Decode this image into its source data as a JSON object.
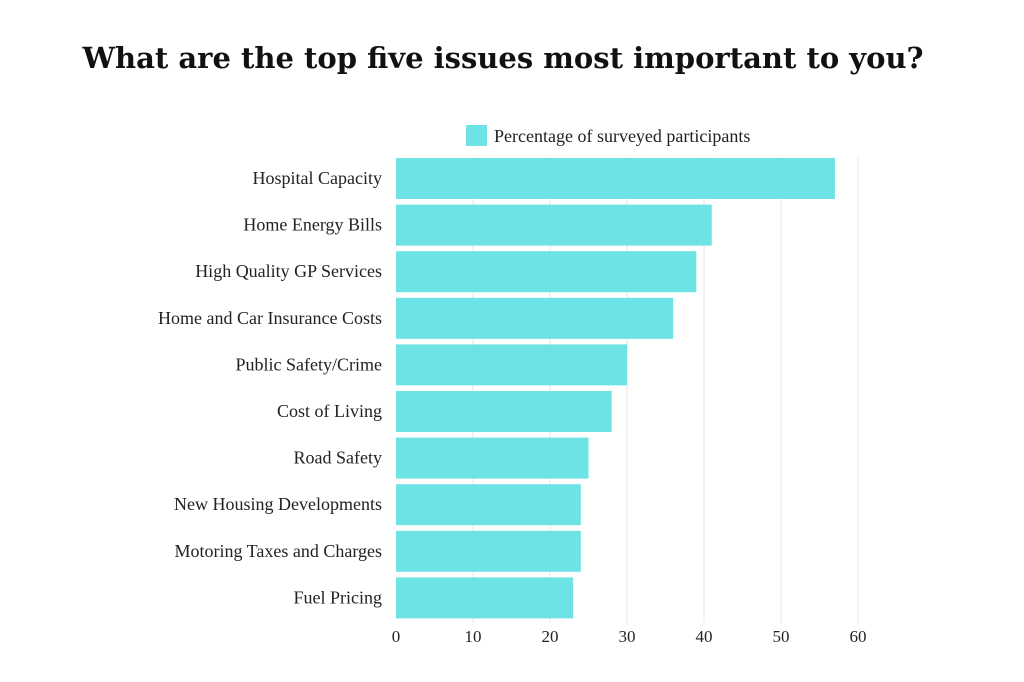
{
  "chart_data": {
    "type": "bar",
    "orientation": "horizontal",
    "title": "What are the top five issues most important to you?",
    "legend_position": "top",
    "categories": [
      "Hospital Capacity",
      "Home Energy Bills",
      "High Quality GP Services",
      "Home and Car Insurance Costs",
      "Public Safety/Crime",
      "Cost of Living",
      "Road Safety",
      "New Housing Developments",
      "Motoring Taxes and Charges",
      "Fuel Pricing"
    ],
    "series": [
      {
        "name": "Percentage of surveyed participants",
        "color": "#6de3e6",
        "values": [
          57,
          41,
          39,
          36,
          30,
          28,
          25,
          24,
          24,
          23
        ]
      }
    ],
    "xlim": [
      0,
      60
    ],
    "xticks": [
      "0",
      "10",
      "20",
      "30",
      "40",
      "50",
      "60"
    ],
    "grid": true
  }
}
